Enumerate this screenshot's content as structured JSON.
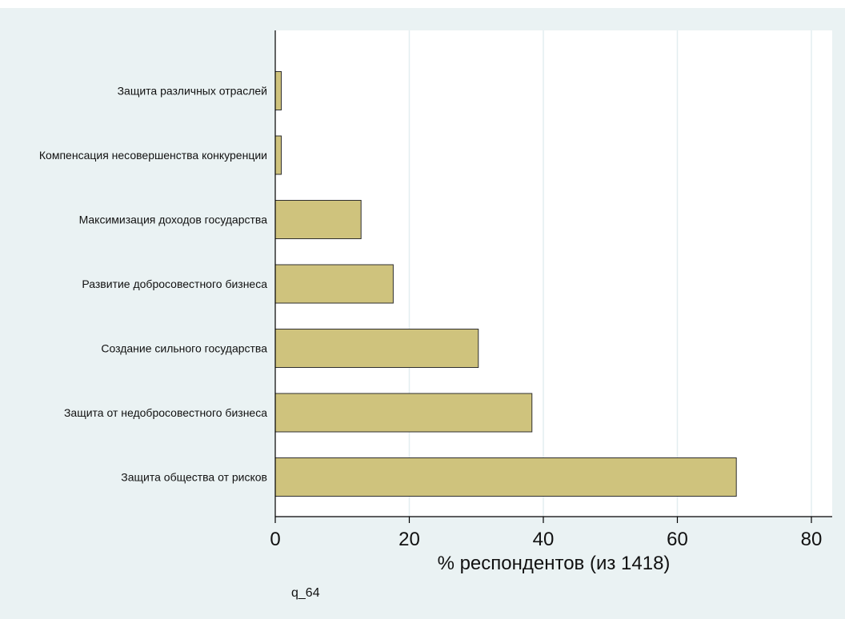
{
  "chart_data": {
    "type": "bar",
    "orientation": "horizontal",
    "categories": [
      "Защита различных отраслей",
      "Компенсация несовершенства конкуренции",
      "Максимизация доходов государства",
      "Развитие добросовестного бизнеса",
      "Создание сильного государства",
      "Защита от недобросовестного бизнеса",
      "Защита общества от рисков"
    ],
    "values": [
      0.9,
      0.9,
      12.8,
      17.6,
      30.3,
      38.3,
      68.8
    ],
    "xlabel": "% респондентов (из 1418)",
    "ylabel": "",
    "xlim": [
      0,
      83
    ],
    "xticks": [
      0,
      20,
      40,
      60,
      80
    ],
    "grid": true,
    "note": "q_64"
  },
  "colors": {
    "outer_background": "#eaf2f3",
    "plot_background": "#ffffff",
    "bar_fill": "#cfc37d",
    "bar_stroke": "#2f2f2f",
    "grid": "#e3eef0",
    "axis": "#000000"
  }
}
